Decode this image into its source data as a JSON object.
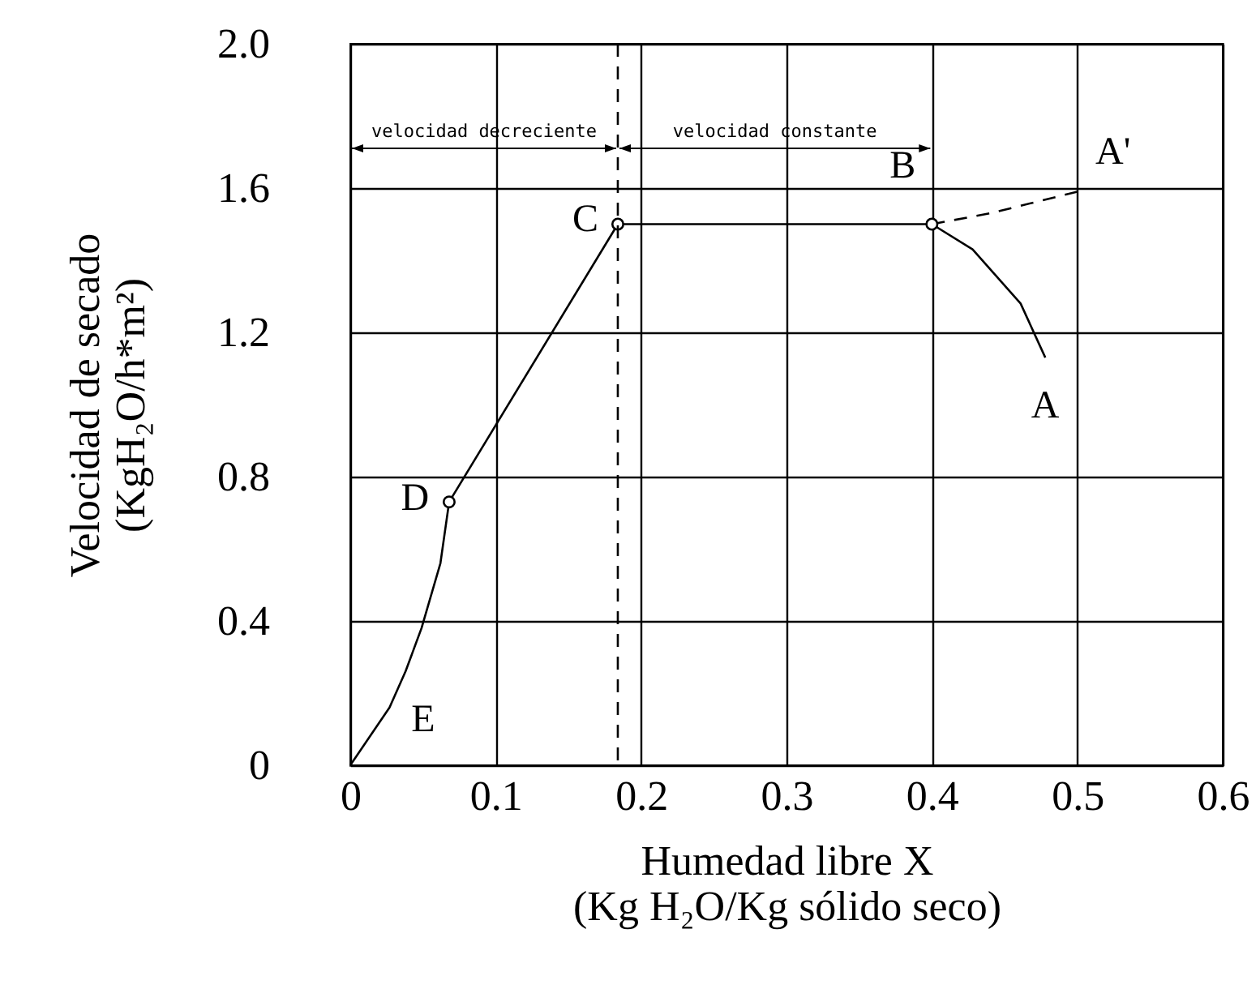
{
  "chart_data": {
    "type": "line",
    "xlabel": "Humedad libre X\n(Kg H₂O/Kg sólido seco)",
    "ylabel": "Velocidad de secado\n(KgH₂O/h*m²)",
    "series": [
      {
        "color": "#000000",
        "line_style": "solid",
        "marker": "none",
        "x": [
          0.478,
          0.461,
          0.428,
          0.4,
          0.184,
          0.068,
          0.062,
          0.049,
          0.038,
          0.027,
          0
        ],
        "values": [
          1.13,
          1.28,
          1.43,
          1.5,
          1.5,
          0.73,
          0.56,
          0.38,
          0.26,
          0.16,
          0
        ]
      },
      {
        "color": "#000000",
        "line_style": "dashed",
        "marker": "none",
        "x": [
          0.4,
          0.44,
          0.5
        ],
        "values": [
          1.5,
          1.53,
          1.59
        ]
      },
      {
        "type": "scatter",
        "color": "#000000",
        "marker": "circle",
        "x": [
          0.4,
          0.184,
          0.068
        ],
        "values": [
          1.5,
          1.5,
          0.73
        ]
      }
    ],
    "xlim": [
      0,
      0.6
    ],
    "xticks": [
      0,
      0.1,
      0.2,
      0.3,
      0.4,
      0.5,
      0.6
    ],
    "ylim": [
      0,
      2
    ],
    "yticks": [
      0,
      0.4,
      0.8,
      1.2,
      1.6,
      {
        "value": 2,
        "label": "2.0"
      }
    ],
    "grid": true,
    "ref_lines": [
      {
        "axis": "x",
        "value": 0.184,
        "line_style": "dashed"
      }
    ],
    "annotations": [
      {
        "text": "A",
        "x": 0.478,
        "y": 1.13
      },
      {
        "text": "A'",
        "x": 0.5,
        "y": 1.59
      },
      {
        "text": "B",
        "x": 0.4,
        "y": 1.5
      },
      {
        "text": "C",
        "x": 0.184,
        "y": 1.5
      },
      {
        "text": "D",
        "x": 0.068,
        "y": 0.73
      },
      {
        "text": "E",
        "x": 0,
        "y": 0
      },
      "velocidad decreciente",
      "velocidad constante"
    ]
  }
}
